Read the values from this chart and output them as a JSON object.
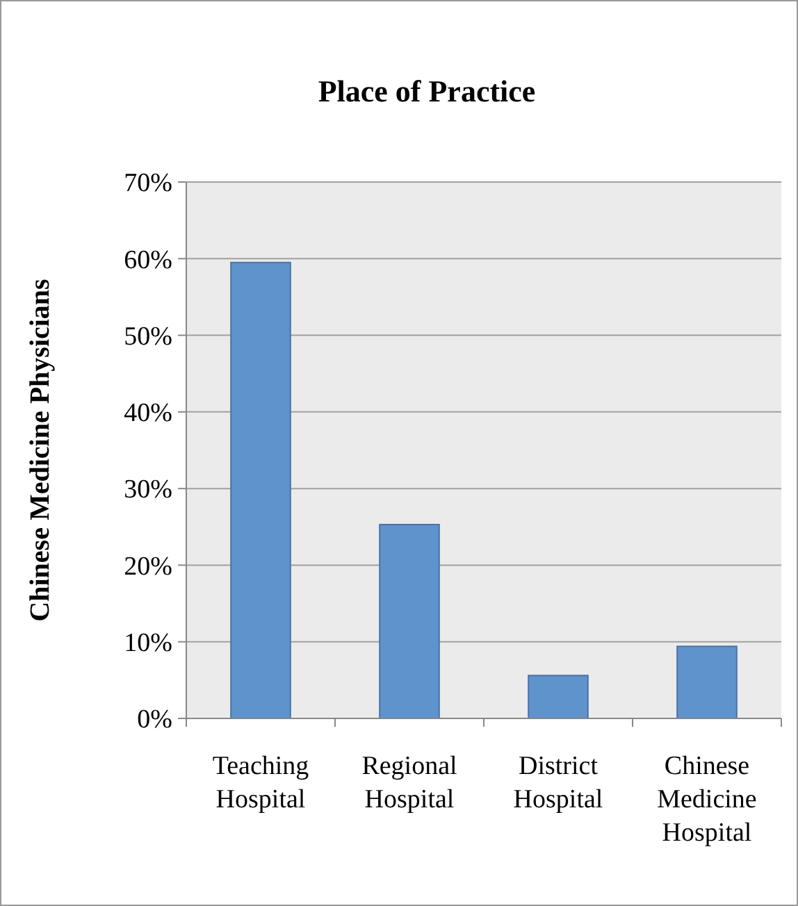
{
  "chart_data": {
    "type": "bar",
    "title": "Place of Practice",
    "ylabel": "Chinese Medicine Physicians",
    "categories": [
      "Teaching Hospital",
      "Regional Hospital",
      "District Hospital",
      "Chinese Medicine Hospital"
    ],
    "values": [
      59.5,
      25.3,
      5.6,
      9.4
    ],
    "color": "#5e93cc",
    "ylim": [
      0,
      70
    ],
    "yticks": [
      {
        "value": 0,
        "label": "0%"
      },
      {
        "value": 10,
        "label": "10%"
      },
      {
        "value": 20,
        "label": "20%"
      },
      {
        "value": 30,
        "label": "30%"
      },
      {
        "value": 40,
        "label": "40%"
      },
      {
        "value": 50,
        "label": "50%"
      },
      {
        "value": 60,
        "label": "60%"
      },
      {
        "value": 70,
        "label": "70%"
      }
    ],
    "grid": "y"
  }
}
